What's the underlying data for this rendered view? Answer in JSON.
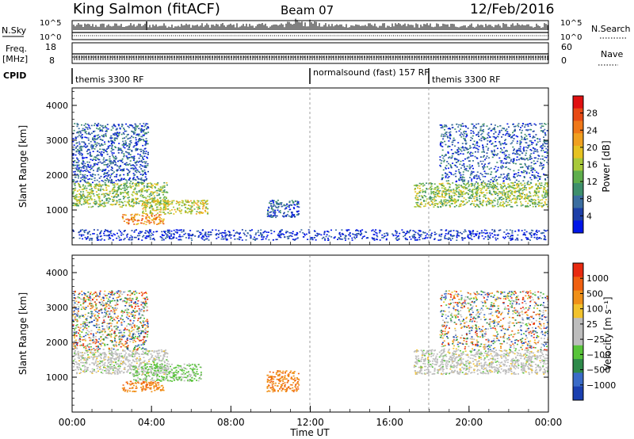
{
  "header": {
    "station": "King Salmon (fitACF)",
    "beam": "Beam 07",
    "date": "12/Feb/2016"
  },
  "aux_panels": {
    "nsky_label": "N.Sky",
    "nsky_ticks": [
      "10^5",
      "10^0"
    ],
    "nsearch_label": "N.Search",
    "nsearch_ticks": [
      "10^5",
      "10^0"
    ],
    "freq_label_line1": "Freq.",
    "freq_label_line2": "[MHz]",
    "freq_ticks": [
      "18",
      "8"
    ],
    "nave_label": "Nave",
    "nave_ticks": [
      "60",
      "0"
    ],
    "cpid_label": "CPID",
    "cpid_segments": [
      {
        "start_hour": 0,
        "text": "themis 3300 RF"
      },
      {
        "start_hour": 12,
        "text": "normalsound (fast) 157 RF"
      },
      {
        "start_hour": 18,
        "text": "themis 3300 RF"
      }
    ]
  },
  "chart_data": [
    {
      "type": "heatmap",
      "panel": "power",
      "title": "",
      "xlabel": "",
      "ylabel": "Slant Range [km]",
      "xlim": [
        0,
        24
      ],
      "ylim": [
        0,
        4500
      ],
      "yticks": [
        1000,
        2000,
        3000,
        4000
      ],
      "ytick_labels": [
        "1000",
        "2000",
        "3000",
        "4000"
      ],
      "colorbar": {
        "label": "Power [dB]",
        "ticks": [
          "28",
          "24",
          "20",
          "16",
          "12",
          "8",
          "4"
        ],
        "colors": [
          "#0015e8",
          "#1d3fa8",
          "#3b6ea0",
          "#3e8f6c",
          "#5fae4c",
          "#a8c93a",
          "#e6c221",
          "#f0a020",
          "#f07818",
          "#e84a14",
          "#e01010"
        ]
      },
      "features": [
        {
          "t0": 0.0,
          "t1": 4.8,
          "r0": 1100,
          "r1": 1800,
          "level": 9
        },
        {
          "t0": 0.0,
          "t1": 3.8,
          "r0": 1800,
          "r1": 3500,
          "level": 6
        },
        {
          "t0": 3.5,
          "t1": 6.8,
          "r0": 900,
          "r1": 1300,
          "level": 10
        },
        {
          "t0": 2.5,
          "t1": 4.6,
          "r0": 600,
          "r1": 900,
          "level": 12
        },
        {
          "t0": 9.8,
          "t1": 11.4,
          "r0": 800,
          "r1": 1300,
          "level": 6
        },
        {
          "t0": 17.2,
          "t1": 24.0,
          "r0": 1100,
          "r1": 1800,
          "level": 9
        },
        {
          "t0": 18.5,
          "t1": 24.0,
          "r0": 1800,
          "r1": 3500,
          "level": 6
        },
        {
          "t0": 0.0,
          "t1": 24.0,
          "r0": 150,
          "r1": 450,
          "level": 5
        }
      ]
    },
    {
      "type": "heatmap",
      "panel": "velocity",
      "title": "",
      "xlabel": "Time UT",
      "ylabel": "Slant Range [km]",
      "xlim": [
        0,
        24
      ],
      "ylim": [
        0,
        4500
      ],
      "xticks": [
        0,
        4,
        8,
        12,
        16,
        20,
        24
      ],
      "xtick_labels": [
        "00:00",
        "04:00",
        "08:00",
        "12:00",
        "16:00",
        "20:00",
        "00:00"
      ],
      "yticks": [
        1000,
        2000,
        3000,
        4000
      ],
      "ytick_labels": [
        "1000",
        "2000",
        "3000",
        "4000"
      ],
      "colorbar": {
        "label": "Velocity [m s⁻¹]",
        "ticks": [
          "1000",
          "500",
          "100",
          "25",
          "−25",
          "−100",
          "−500",
          "−1000"
        ],
        "colors": [
          "#1a3fb0",
          "#3a6bc8",
          "#2e8a4a",
          "#58c43a",
          "#bdbdbd",
          "#bdbdbd",
          "#f2c22c",
          "#f09018",
          "#f06010",
          "#e82a10"
        ]
      },
      "features": [
        {
          "t0": 0.0,
          "t1": 4.8,
          "r0": 1100,
          "r1": 1800,
          "vel": "grey"
        },
        {
          "t0": 0.0,
          "t1": 3.8,
          "r0": 1800,
          "r1": 3500,
          "vel": "mixed"
        },
        {
          "t0": 3.0,
          "t1": 6.5,
          "r0": 900,
          "r1": 1400,
          "vel": "green"
        },
        {
          "t0": 2.5,
          "t1": 4.6,
          "r0": 600,
          "r1": 900,
          "vel": "orange"
        },
        {
          "t0": 9.8,
          "t1": 11.4,
          "r0": 600,
          "r1": 1200,
          "vel": "orange"
        },
        {
          "t0": 17.2,
          "t1": 24.0,
          "r0": 1100,
          "r1": 1800,
          "vel": "grey"
        },
        {
          "t0": 18.5,
          "t1": 24.0,
          "r0": 1800,
          "r1": 3500,
          "vel": "mixed"
        }
      ]
    }
  ]
}
